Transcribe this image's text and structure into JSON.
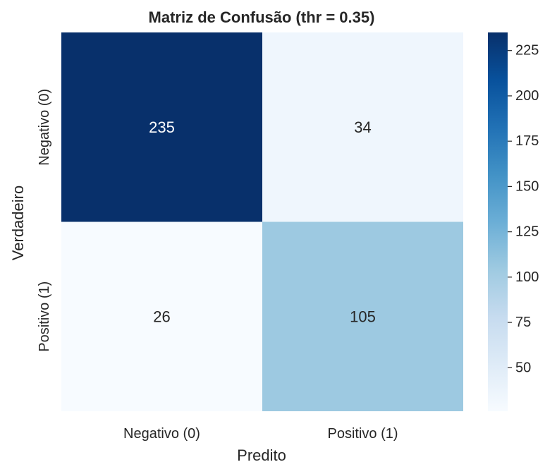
{
  "chart_data": {
    "type": "heatmap",
    "title": "Matriz de Confusão (thr = 0.35)",
    "xlabel": "Predito",
    "ylabel": "Verdadeiro",
    "x_categories": [
      "Negativo (0)",
      "Positivo (1)"
    ],
    "y_categories": [
      "Negativo (0)",
      "Positivo (1)"
    ],
    "values": [
      [
        235,
        34
      ],
      [
        26,
        105
      ]
    ],
    "colormap": "Blues",
    "colorbar": {
      "min": 26,
      "max": 235,
      "ticks": [
        50,
        75,
        100,
        125,
        150,
        175,
        200,
        225
      ]
    },
    "colors": {
      "low": "#f7fbff",
      "high": "#08306b",
      "text_dark": "#262626",
      "text_light": "#ffffff"
    }
  }
}
